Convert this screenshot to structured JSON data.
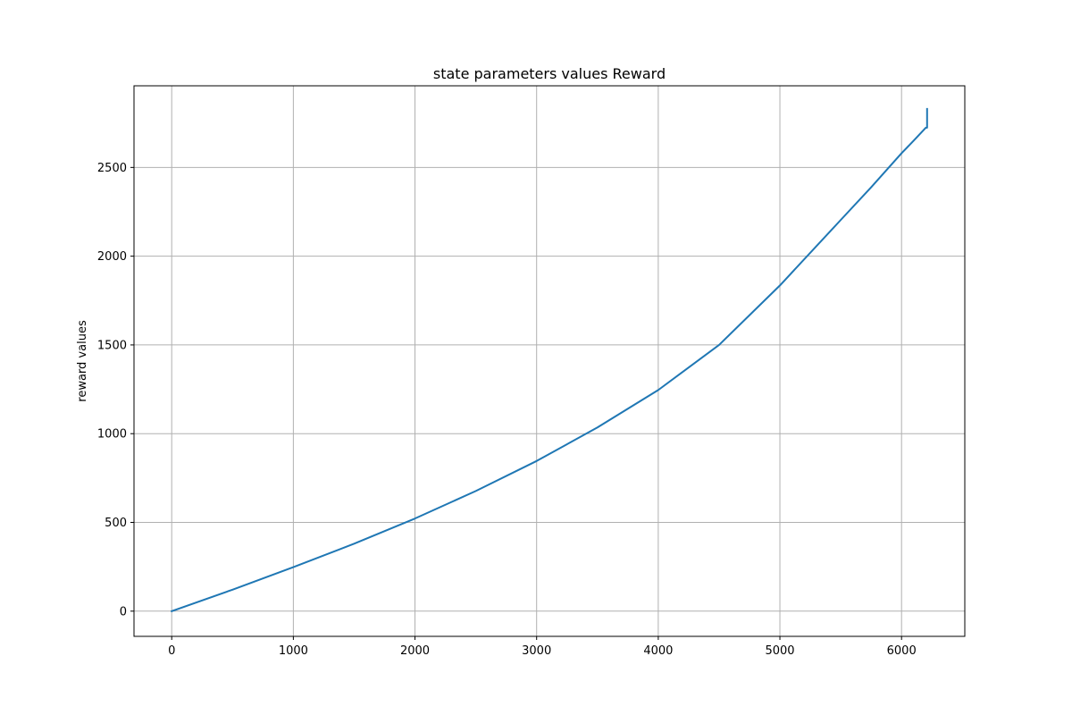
{
  "chart_data": {
    "type": "line",
    "title": "state parameters values Reward",
    "xlabel": "",
    "ylabel": "reward values",
    "xlim": [
      -310,
      6520
    ],
    "ylim": [
      -142,
      2960
    ],
    "grid": true,
    "xticks": [
      0,
      1000,
      2000,
      3000,
      4000,
      5000,
      6000
    ],
    "yticks": [
      0,
      500,
      1000,
      1500,
      2000,
      2500
    ],
    "series": [
      {
        "color": "#1f77b4",
        "points": [
          [
            0,
            0
          ],
          [
            500,
            121
          ],
          [
            1000,
            248
          ],
          [
            1500,
            380
          ],
          [
            2000,
            522
          ],
          [
            2500,
            677
          ],
          [
            3000,
            846
          ],
          [
            3500,
            1035
          ],
          [
            4000,
            1246
          ],
          [
            4500,
            1500
          ],
          [
            5000,
            1835
          ],
          [
            5500,
            2204
          ],
          [
            5750,
            2388
          ],
          [
            6000,
            2580
          ],
          [
            6100,
            2651
          ],
          [
            6200,
            2724
          ],
          [
            6210,
            2724
          ],
          [
            6210,
            2830
          ]
        ]
      }
    ]
  }
}
